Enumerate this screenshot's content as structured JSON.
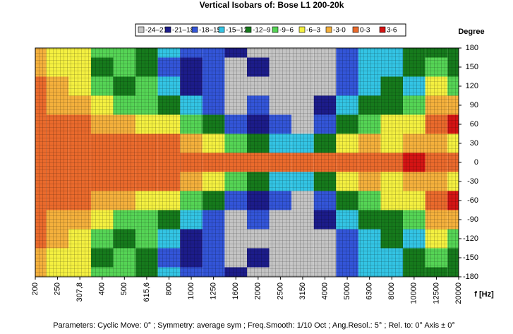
{
  "chart_data": {
    "type": "heatmap",
    "title": "Vertical Isobars of:   Bose  L1  200-20k",
    "y_label": "Degree",
    "x_label": "f [Hz]",
    "footer": "Parameters:   Cyclic Move:  0°   ;   Symmetry: average sym   ;   Freq.Smooth: 1/10 Oct   ;   Ang.Resol.:  5°   ;   Rel. to: 0° Axis  ±  0°",
    "legend": [
      {
        "label": "-24–21",
        "color": "#c4c4c4",
        "range": [
          -24,
          -21
        ]
      },
      {
        "label": "-21–18",
        "color": "#1c1c8a",
        "range": [
          -21,
          -18
        ]
      },
      {
        "label": "-18–15",
        "color": "#3355d8",
        "range": [
          -18,
          -15
        ]
      },
      {
        "label": "-15–12",
        "color": "#33c4e4",
        "range": [
          -15,
          -12
        ]
      },
      {
        "label": "-12–9",
        "color": "#167a1c",
        "range": [
          -12,
          -9
        ]
      },
      {
        "label": "-9–6",
        "color": "#55d455",
        "range": [
          -9,
          -6
        ]
      },
      {
        "label": "-6–3",
        "color": "#f4f040",
        "range": [
          -6,
          -3
        ]
      },
      {
        "label": "-3-0",
        "color": "#f4b03c",
        "range": [
          -3,
          0
        ]
      },
      {
        "label": "0-3",
        "color": "#ea6a2c",
        "range": [
          0,
          3
        ]
      },
      {
        "label": "3-6",
        "color": "#d41414",
        "range": [
          3,
          6
        ]
      }
    ],
    "categories": [
      "200",
      "250",
      "307,8",
      "400",
      "500",
      "615,6",
      "800",
      "1000",
      "1250",
      "1600",
      "2000",
      "2500",
      "3150",
      "4000",
      "5000",
      "6300",
      "8000",
      "10000",
      "12500",
      "20000"
    ],
    "y": [
      180,
      150,
      120,
      90,
      60,
      30,
      0,
      -30,
      -60,
      -90,
      -120,
      -150,
      -180
    ],
    "ylim": [
      -180,
      180
    ],
    "yticks": [
      180,
      150,
      120,
      90,
      60,
      30,
      0,
      -30,
      -60,
      -90,
      -120,
      -150,
      -180
    ],
    "z": [
      [
        -2,
        -4,
        -5,
        -8,
        -8,
        -10,
        -14,
        -17,
        -17,
        -19,
        -22,
        -22,
        -22,
        -22,
        -16,
        -14,
        -13,
        -11,
        -10,
        -10
      ],
      [
        -2,
        -4,
        -5,
        -10,
        -8,
        -11,
        -16,
        -19,
        -17,
        -22,
        -20,
        -22,
        -22,
        -22,
        -16,
        -13,
        -14,
        -11,
        -8,
        -10
      ],
      [
        1,
        -2,
        -4,
        -8,
        -10,
        -8,
        -13,
        -20,
        -17,
        -22,
        -22,
        -22,
        -22,
        -22,
        -17,
        -14,
        -10,
        -14,
        -5,
        -8
      ],
      [
        1,
        -2,
        -2,
        -5,
        -8,
        -7,
        -10,
        -14,
        -17,
        -22,
        -17,
        -22,
        -22,
        -20,
        -14,
        -10,
        -11,
        -8,
        -2,
        -2
      ],
      [
        1,
        1,
        1,
        -2,
        -2,
        -4,
        -5,
        -8,
        -11,
        -17,
        -20,
        -16,
        -22,
        -16,
        -10,
        -8,
        -5,
        -4,
        2,
        4
      ],
      [
        1,
        1,
        1,
        1,
        1,
        1,
        1,
        -2,
        -4,
        -7,
        -10,
        -13,
        -13,
        -10,
        -5,
        -2,
        -5,
        -1,
        -2,
        -4
      ],
      [
        1,
        1,
        1,
        1,
        1,
        1,
        1,
        1,
        1,
        1,
        1,
        1,
        1,
        1,
        1,
        1,
        1,
        4,
        1,
        1
      ],
      [
        1,
        1,
        1,
        1,
        1,
        1,
        1,
        -2,
        -4,
        -7,
        -10,
        -13,
        -13,
        -10,
        -5,
        -2,
        -5,
        -1,
        -2,
        -4
      ],
      [
        1,
        1,
        1,
        -2,
        -2,
        -4,
        -5,
        -8,
        -11,
        -17,
        -20,
        -16,
        -22,
        -16,
        -10,
        -8,
        -5,
        -4,
        2,
        4
      ],
      [
        1,
        -2,
        -2,
        -5,
        -8,
        -7,
        -10,
        -14,
        -17,
        -22,
        -17,
        -22,
        -22,
        -20,
        -14,
        -10,
        -11,
        -8,
        -2,
        -2
      ],
      [
        1,
        -2,
        -4,
        -8,
        -10,
        -8,
        -13,
        -20,
        -17,
        -22,
        -22,
        -22,
        -22,
        -22,
        -17,
        -14,
        -10,
        -14,
        -5,
        -8
      ],
      [
        -2,
        -4,
        -5,
        -10,
        -8,
        -11,
        -16,
        -19,
        -17,
        -22,
        -20,
        -22,
        -22,
        -22,
        -16,
        -13,
        -14,
        -11,
        -8,
        -10
      ],
      [
        -2,
        -4,
        -5,
        -8,
        -8,
        -10,
        -14,
        -17,
        -17,
        -19,
        -22,
        -22,
        -22,
        -22,
        -16,
        -14,
        -13,
        -11,
        -10,
        -10
      ]
    ]
  }
}
